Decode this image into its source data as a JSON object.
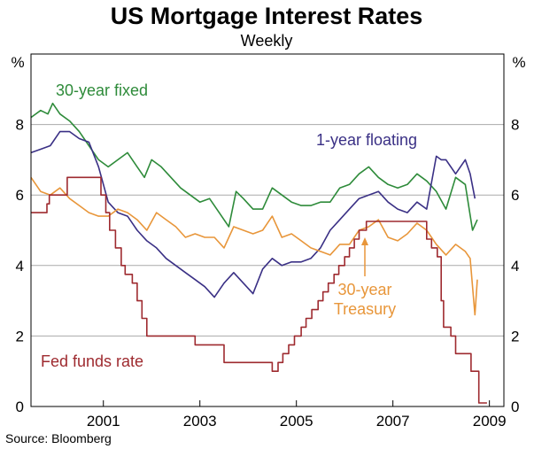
{
  "chart_data": {
    "type": "line",
    "title": "US Mortgage Interest Rates",
    "subtitle": "Weekly",
    "y_unit_left": "%",
    "y_unit_right": "%",
    "ylim": [
      0,
      10
    ],
    "yticks": [
      0,
      2,
      4,
      6,
      8
    ],
    "xlim": [
      1999.5,
      2009.3
    ],
    "xticks": [
      2001,
      2003,
      2005,
      2007,
      2009
    ],
    "xtick_labels": [
      "2001",
      "2003",
      "2005",
      "2007",
      "2009"
    ],
    "source": "Source: Bloomberg",
    "colors": {
      "fixed30": "#2e8b3a",
      "floating1": "#3a3085",
      "treasury30": "#e8963a",
      "fedfunds": "#9e2a2f",
      "grid": "#aaaaaa"
    },
    "series": [
      {
        "key": "fixed30",
        "name": "30-year fixed",
        "x": [
          1999.5,
          1999.7,
          1999.85,
          1999.95,
          2000.1,
          2000.3,
          2000.5,
          2000.7,
          2000.9,
          2001.1,
          2001.3,
          2001.5,
          2001.7,
          2001.85,
          2002.0,
          2002.2,
          2002.4,
          2002.6,
          2002.8,
          2003.0,
          2003.2,
          2003.4,
          2003.6,
          2003.75,
          2003.9,
          2004.1,
          2004.3,
          2004.5,
          2004.7,
          2004.9,
          2005.1,
          2005.3,
          2005.5,
          2005.7,
          2005.9,
          2006.1,
          2006.3,
          2006.5,
          2006.7,
          2006.9,
          2007.1,
          2007.3,
          2007.5,
          2007.7,
          2007.9,
          2008.1,
          2008.3,
          2008.5,
          2008.65,
          2008.75
        ],
        "values": [
          8.2,
          8.4,
          8.3,
          8.6,
          8.3,
          8.1,
          7.8,
          7.4,
          7.0,
          6.8,
          7.0,
          7.2,
          6.8,
          6.5,
          7.0,
          6.8,
          6.5,
          6.2,
          6.0,
          5.8,
          5.9,
          5.5,
          5.1,
          6.1,
          5.9,
          5.6,
          5.6,
          6.2,
          6.0,
          5.8,
          5.7,
          5.7,
          5.8,
          5.8,
          6.2,
          6.3,
          6.6,
          6.8,
          6.5,
          6.3,
          6.2,
          6.3,
          6.6,
          6.4,
          6.1,
          5.6,
          6.5,
          6.3,
          5.0,
          5.3
        ]
      },
      {
        "key": "floating1",
        "name": "1-year floating",
        "x": [
          1999.5,
          1999.7,
          1999.9,
          2000.1,
          2000.3,
          2000.5,
          2000.7,
          2000.9,
          2001.1,
          2001.3,
          2001.5,
          2001.7,
          2001.9,
          2002.1,
          2002.3,
          2002.5,
          2002.7,
          2002.9,
          2003.1,
          2003.3,
          2003.5,
          2003.7,
          2003.9,
          2004.1,
          2004.3,
          2004.5,
          2004.7,
          2004.9,
          2005.1,
          2005.3,
          2005.5,
          2005.7,
          2005.9,
          2006.1,
          2006.3,
          2006.5,
          2006.7,
          2006.9,
          2007.1,
          2007.3,
          2007.5,
          2007.7,
          2007.9,
          2008.0,
          2008.1,
          2008.3,
          2008.5,
          2008.6,
          2008.7
        ],
        "values": [
          7.2,
          7.3,
          7.4,
          7.8,
          7.8,
          7.6,
          7.5,
          6.8,
          5.8,
          5.5,
          5.4,
          5.0,
          4.7,
          4.5,
          4.2,
          4.0,
          3.8,
          3.6,
          3.4,
          3.1,
          3.5,
          3.8,
          3.5,
          3.2,
          3.9,
          4.2,
          4.0,
          4.1,
          4.1,
          4.2,
          4.5,
          5.0,
          5.3,
          5.6,
          5.9,
          6.0,
          6.1,
          5.8,
          5.6,
          5.5,
          5.8,
          5.6,
          7.1,
          7.0,
          7.0,
          6.6,
          7.0,
          6.6,
          5.9
        ]
      },
      {
        "key": "treasury30",
        "name": "30-year Treasury",
        "x": [
          1999.5,
          1999.7,
          1999.9,
          2000.1,
          2000.3,
          2000.5,
          2000.7,
          2000.9,
          2001.1,
          2001.3,
          2001.5,
          2001.7,
          2001.9,
          2002.1,
          2002.3,
          2002.5,
          2002.7,
          2002.9,
          2003.1,
          2003.3,
          2003.5,
          2003.7,
          2003.9,
          2004.1,
          2004.3,
          2004.5,
          2004.7,
          2004.9,
          2005.1,
          2005.3,
          2005.5,
          2005.7,
          2005.9,
          2006.1,
          2006.3,
          2006.5,
          2006.7,
          2006.9,
          2007.1,
          2007.3,
          2007.5,
          2007.7,
          2007.9,
          2008.1,
          2008.3,
          2008.5,
          2008.6,
          2008.7,
          2008.75
        ],
        "values": [
          6.5,
          6.1,
          6.0,
          6.2,
          5.9,
          5.7,
          5.5,
          5.4,
          5.4,
          5.6,
          5.5,
          5.3,
          5.0,
          5.5,
          5.3,
          5.1,
          4.8,
          4.9,
          4.8,
          4.8,
          4.5,
          5.1,
          5.0,
          4.9,
          5.0,
          5.4,
          4.8,
          4.9,
          4.7,
          4.5,
          4.4,
          4.3,
          4.6,
          4.6,
          5.0,
          5.1,
          5.3,
          4.8,
          4.7,
          4.9,
          5.2,
          5.0,
          4.6,
          4.3,
          4.6,
          4.4,
          4.2,
          2.6,
          3.6
        ]
      },
      {
        "key": "fedfunds",
        "name": "Fed funds rate",
        "step": true,
        "x": [
          1999.5,
          1999.65,
          1999.83,
          1999.88,
          2000.1,
          2000.25,
          2000.38,
          2000.95,
          2001.05,
          2001.13,
          2001.25,
          2001.37,
          2001.45,
          2001.6,
          2001.7,
          2001.8,
          2001.9,
          2002.9,
          2003.5,
          2004.5,
          2004.62,
          2004.72,
          2004.84,
          2004.96,
          2005.1,
          2005.2,
          2005.32,
          2005.45,
          2005.55,
          2005.66,
          2005.78,
          2005.88,
          2006.0,
          2006.1,
          2006.2,
          2006.3,
          2006.45,
          2007.7,
          2007.8,
          2007.92,
          2008.0,
          2008.05,
          2008.2,
          2008.3,
          2008.62,
          2008.78,
          2008.95
        ],
        "values": [
          5.5,
          5.5,
          5.75,
          6.0,
          6.0,
          6.5,
          6.5,
          6.0,
          5.5,
          5.0,
          4.5,
          4.0,
          3.75,
          3.5,
          3.0,
          2.5,
          2.0,
          1.75,
          1.25,
          1.0,
          1.25,
          1.5,
          1.75,
          2.0,
          2.25,
          2.5,
          2.75,
          3.0,
          3.25,
          3.5,
          3.75,
          4.0,
          4.25,
          4.5,
          4.75,
          5.0,
          5.25,
          4.75,
          4.5,
          4.25,
          3.0,
          2.25,
          2.0,
          1.5,
          1.0,
          0.1,
          0.1
        ]
      }
    ],
    "annotations": [
      {
        "series": "fixed30",
        "lines": [
          "30-year fixed"
        ]
      },
      {
        "series": "floating1",
        "lines": [
          "1-year floating"
        ]
      },
      {
        "series": "treasury30",
        "lines": [
          "30-year",
          "Treasury"
        ]
      },
      {
        "series": "fedfunds",
        "lines": [
          "Fed funds rate"
        ]
      }
    ]
  }
}
